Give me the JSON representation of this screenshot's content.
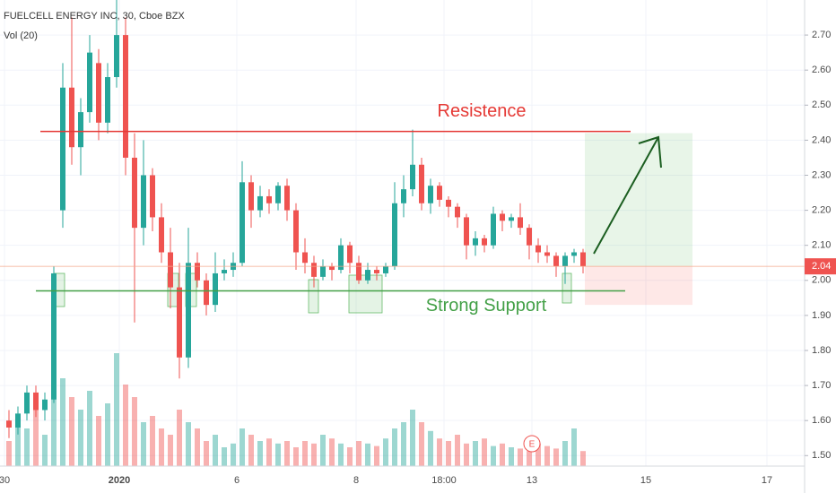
{
  "chart_data": {
    "type": "candlestick",
    "title": "FUELCELL ENERGY INC, 30, Cboe BZX",
    "volume_label": "Vol (20)",
    "earnings_marker": "E",
    "up_color": "#26a69a",
    "down_color": "#ef5350",
    "open": [
      1.6,
      1.58,
      1.62,
      1.68,
      1.63,
      1.66,
      2.2,
      2.55,
      2.38,
      2.48,
      2.62,
      2.45,
      2.58,
      2.7,
      2.35,
      2.15,
      2.3,
      2.18,
      2.08,
      1.98,
      1.78,
      2.05,
      2.0,
      1.93,
      2.02,
      2.03,
      2.05,
      2.28,
      2.2,
      2.24,
      2.22,
      2.27,
      2.2,
      2.08,
      2.05,
      2.01,
      2.04,
      2.03,
      2.1,
      2.05,
      2.0,
      2.03,
      2.02,
      2.04,
      2.22,
      2.26,
      2.33,
      2.22,
      2.27,
      2.23,
      2.21,
      2.18,
      2.1,
      2.12,
      2.1,
      2.19,
      2.17,
      2.18,
      2.15,
      2.1,
      2.08,
      2.07,
      2.04,
      2.07,
      2.08
    ],
    "high": [
      1.63,
      1.64,
      1.7,
      1.7,
      1.68,
      2.04,
      2.62,
      2.75,
      2.52,
      2.7,
      2.66,
      2.62,
      2.8,
      2.75,
      2.42,
      2.4,
      2.32,
      2.22,
      2.15,
      2.05,
      2.15,
      2.08,
      2.02,
      2.08,
      2.06,
      2.08,
      2.34,
      2.3,
      2.27,
      2.26,
      2.28,
      2.29,
      2.22,
      2.12,
      2.07,
      2.06,
      2.05,
      2.12,
      2.11,
      2.07,
      2.05,
      2.04,
      2.05,
      2.28,
      2.3,
      2.43,
      2.35,
      2.29,
      2.28,
      2.24,
      2.22,
      2.19,
      2.14,
      2.13,
      2.21,
      2.2,
      2.19,
      2.22,
      2.16,
      2.12,
      2.1,
      2.08,
      2.08,
      2.09,
      2.09
    ],
    "low": [
      1.55,
      1.56,
      1.6,
      1.61,
      1.6,
      1.65,
      2.15,
      2.33,
      2.3,
      2.45,
      2.4,
      2.42,
      2.55,
      2.3,
      1.88,
      2.1,
      2.14,
      2.05,
      1.92,
      1.72,
      1.75,
      1.98,
      1.9,
      1.91,
      2.0,
      2.01,
      2.04,
      2.15,
      2.18,
      2.19,
      2.2,
      2.17,
      2.03,
      2.02,
      1.98,
      2.0,
      2.0,
      2.02,
      2.02,
      1.99,
      1.99,
      2.0,
      2.01,
      2.03,
      2.18,
      2.24,
      2.2,
      2.19,
      2.21,
      2.18,
      2.15,
      2.06,
      2.07,
      2.08,
      2.09,
      2.14,
      2.15,
      2.13,
      2.06,
      2.05,
      2.05,
      2.01,
      1.99,
      2.05,
      2.02
    ],
    "close": [
      1.58,
      1.62,
      1.68,
      1.63,
      1.66,
      2.02,
      2.55,
      2.38,
      2.48,
      2.65,
      2.45,
      2.58,
      2.7,
      2.35,
      2.15,
      2.3,
      2.18,
      2.08,
      1.98,
      1.78,
      2.05,
      2.0,
      1.93,
      2.02,
      2.03,
      2.05,
      2.28,
      2.2,
      2.24,
      2.22,
      2.27,
      2.2,
      2.08,
      2.05,
      2.01,
      2.04,
      2.03,
      2.1,
      2.05,
      2.0,
      2.03,
      2.02,
      2.04,
      2.22,
      2.26,
      2.33,
      2.22,
      2.27,
      2.23,
      2.21,
      2.18,
      2.1,
      2.12,
      2.1,
      2.19,
      2.17,
      2.18,
      2.15,
      2.1,
      2.08,
      2.07,
      2.04,
      2.07,
      2.08,
      2.04
    ],
    "volume": [
      20,
      35,
      30,
      45,
      25,
      85,
      70,
      55,
      45,
      60,
      40,
      50,
      90,
      65,
      55,
      35,
      40,
      30,
      25,
      45,
      35,
      30,
      20,
      25,
      15,
      18,
      30,
      25,
      20,
      22,
      18,
      20,
      15,
      20,
      18,
      25,
      22,
      18,
      15,
      20,
      18,
      16,
      22,
      30,
      35,
      45,
      35,
      28,
      22,
      20,
      25,
      18,
      20,
      22,
      16,
      18,
      15,
      14,
      12,
      18,
      16,
      14,
      20,
      30,
      12
    ],
    "volume_lim": [
      0,
      100
    ],
    "xlim": [
      -1,
      88.7
    ],
    "xticks": [
      {
        "value": -0.5,
        "label": "30"
      },
      {
        "value": 12.3,
        "label": "2020"
      },
      {
        "value": 25.4,
        "label": "6"
      },
      {
        "value": 38.7,
        "label": "8"
      },
      {
        "value": 48.5,
        "label": "18:00"
      },
      {
        "value": 58.3,
        "label": "13"
      },
      {
        "value": 71,
        "label": "15"
      },
      {
        "value": 84.5,
        "label": "17"
      }
    ],
    "ylim": [
      1.47,
      2.8
    ],
    "yticks": [
      {
        "value": 2.7,
        "label": "2.70"
      },
      {
        "value": 2.6,
        "label": "2.60"
      },
      {
        "value": 2.5,
        "label": "2.50"
      },
      {
        "value": 2.4,
        "label": "2.40"
      },
      {
        "value": 2.3,
        "label": "2.30"
      },
      {
        "value": 2.2,
        "label": "2.20"
      },
      {
        "value": 2.1,
        "label": "2.10"
      },
      {
        "value": 2.0,
        "label": "2.00"
      },
      {
        "value": 1.9,
        "label": "1.90"
      },
      {
        "value": 1.8,
        "label": "1.80"
      },
      {
        "value": 1.7,
        "label": "1.70"
      },
      {
        "value": 1.6,
        "label": "1.60"
      },
      {
        "value": 1.5,
        "label": "1.50"
      }
    ],
    "grid": true,
    "last_price": 2.04,
    "annotations": [
      {
        "text": "Resistence",
        "price": 2.425,
        "color": "#e53935"
      },
      {
        "text": "Strong Support",
        "price": 1.97,
        "color": "#43a047"
      }
    ],
    "position": {
      "entry": 2.04,
      "target": 2.42,
      "stop": 1.93
    }
  }
}
